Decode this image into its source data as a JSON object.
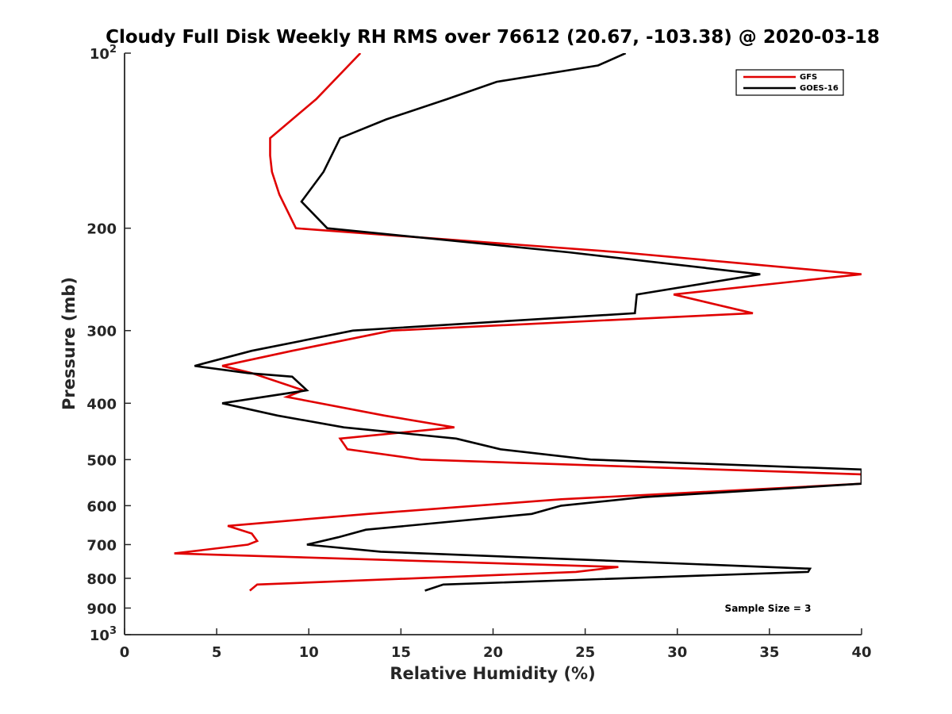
{
  "chart_data": {
    "type": "line",
    "title": "Cloudy Full Disk Weekly RH RMS over 76612 (20.67, -103.38) @ 2020-03-18",
    "xlabel": "Relative Humidity (%)",
    "ylabel": "Pressure (mb)",
    "xlim": [
      0,
      40
    ],
    "ylim": [
      100,
      1000
    ],
    "yscale": "log",
    "y_reversed": true,
    "xticks": [
      0,
      5,
      10,
      15,
      20,
      25,
      30,
      35,
      40
    ],
    "xtick_labels": [
      "0",
      "5",
      "10",
      "15",
      "20",
      "25",
      "30",
      "35",
      "40"
    ],
    "yticks": [
      {
        "value": 100,
        "base": "10",
        "exp": "2"
      },
      {
        "value": 200,
        "label": "200"
      },
      {
        "value": 300,
        "label": "300"
      },
      {
        "value": 400,
        "label": "400"
      },
      {
        "value": 500,
        "label": "500"
      },
      {
        "value": 600,
        "label": "600"
      },
      {
        "value": 700,
        "label": "700"
      },
      {
        "value": 800,
        "label": "800"
      },
      {
        "value": 900,
        "label": "900"
      },
      {
        "value": 1000,
        "base": "10",
        "exp": "3"
      }
    ],
    "legend_position": "top-right",
    "series": [
      {
        "name": "GFS",
        "color": "#e00000",
        "x": [
          12.8,
          10.4,
          7.9,
          7.9,
          8.0,
          8.4,
          9.3,
          26.9,
          40.0,
          29.8,
          34.1,
          14.5,
          9.1,
          5.3,
          6.9,
          9.7,
          8.8,
          14.1,
          17.9,
          11.7,
          12.1,
          16.1,
          40.0,
          40.0,
          35.4,
          23.7,
          13.2,
          5.6,
          6.9,
          7.2,
          6.7,
          2.7,
          26.8,
          24.5,
          7.2,
          6.8
        ],
        "y": [
          100,
          120,
          140,
          150,
          160,
          175,
          200,
          220,
          240,
          260,
          280,
          300,
          325,
          345,
          355,
          380,
          390,
          420,
          440,
          460,
          480,
          500,
          530,
          550,
          560,
          585,
          620,
          650,
          670,
          690,
          700,
          725,
          765,
          780,
          820,
          840
        ]
      },
      {
        "name": "GOES-16",
        "color": "#000000",
        "x": [
          27.2,
          25.7,
          20.2,
          17.5,
          14.2,
          11.7,
          10.8,
          9.6,
          11.0,
          24.1,
          34.5,
          27.8,
          27.7,
          12.4,
          6.9,
          3.8,
          6.7,
          9.1,
          9.9,
          5.3,
          8.3,
          11.9,
          18.0,
          20.4,
          25.3,
          40.0,
          40.0,
          36.1,
          28.2,
          23.7,
          22.1,
          13.1,
          11.6,
          9.9,
          13.9,
          37.2,
          37.1,
          17.3,
          16.3
        ],
        "y": [
          100,
          105,
          112,
          120,
          130,
          140,
          160,
          180,
          200,
          220,
          240,
          260,
          280,
          300,
          325,
          345,
          355,
          360,
          380,
          400,
          420,
          440,
          460,
          480,
          500,
          520,
          550,
          560,
          580,
          600,
          620,
          660,
          680,
          700,
          720,
          770,
          780,
          820,
          840
        ]
      }
    ],
    "annotation": "Sample Size = 3"
  }
}
